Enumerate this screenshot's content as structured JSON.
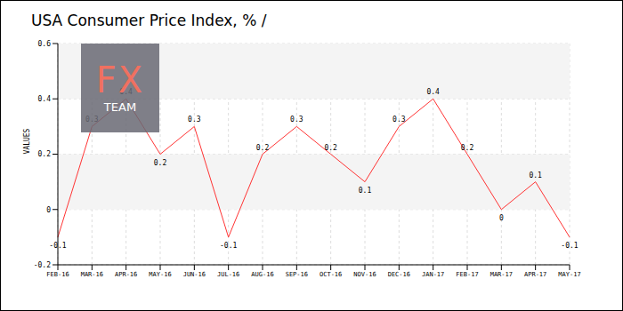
{
  "chart_data": {
    "type": "line",
    "title": "USA Consumer Price Index, % /",
    "y_label": "VALUES",
    "annotations": [
      "FX",
      "TEAM"
    ],
    "categories": [
      "FEB-16",
      "MAR-16",
      "APR-16",
      "MAY-16",
      "JUN-16",
      "JUL-16",
      "AUG-16",
      "SEP-16",
      "OCT-16",
      "NOV-16",
      "DEC-16",
      "JAN-17",
      "FEB-17",
      "MAR-17",
      "APR-17",
      "MAY-17"
    ],
    "values": [
      -0.1,
      0.3,
      0.4,
      0.2,
      0.3,
      -0.1,
      0.2,
      0.3,
      0.2,
      0.1,
      0.3,
      0.4,
      0.2,
      0,
      0.1,
      -0.1
    ],
    "color": "#ff3333",
    "ylim": [
      -0.2,
      0.6
    ],
    "yticks": [
      -0.2,
      0,
      0.2,
      0.4,
      0.6
    ],
    "grid": true,
    "data_labels": true
  }
}
